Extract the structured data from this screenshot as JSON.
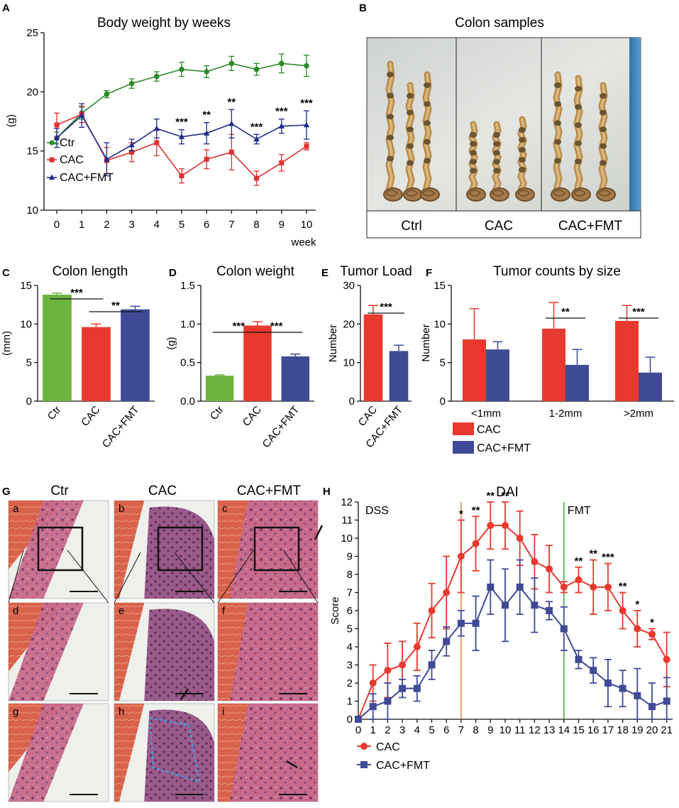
{
  "panels": {
    "A": "A",
    "B": "B",
    "C": "C",
    "D": "D",
    "E": "E",
    "F": "F",
    "G": "G",
    "H": "H"
  },
  "chart_data": [
    {
      "id": "A",
      "type": "line",
      "title": "Body weight by weeks",
      "xlabel": "week",
      "ylabel": "(g)",
      "ylim": [
        10,
        25
      ],
      "yticks": [
        10,
        15,
        20,
        25
      ],
      "x": [
        0,
        1,
        2,
        3,
        4,
        5,
        6,
        7,
        8,
        9,
        10
      ],
      "series": [
        {
          "name": "Ctr",
          "color": "#2a8a2a",
          "marker": "circle",
          "values": [
            16.1,
            18.2,
            19.8,
            20.7,
            21.3,
            21.9,
            21.7,
            22.4,
            21.9,
            22.4,
            22.2
          ],
          "err": [
            0.5,
            0.5,
            0.3,
            0.4,
            0.4,
            0.6,
            0.5,
            0.6,
            0.5,
            0.8,
            0.9
          ]
        },
        {
          "name": "CAC",
          "color": "#e03030",
          "marker": "square",
          "values": [
            17.2,
            18.1,
            14.2,
            14.9,
            15.7,
            12.9,
            14.3,
            14.9,
            12.7,
            14.0,
            15.4
          ],
          "err": [
            1.0,
            0.7,
            1.1,
            0.8,
            1.1,
            0.6,
            0.8,
            1.5,
            0.6,
            0.7,
            0.3
          ]
        },
        {
          "name": "CAC+FMT",
          "color": "#1f2a8a",
          "marker": "triangle",
          "values": [
            16.1,
            18.0,
            14.3,
            15.5,
            16.9,
            16.2,
            16.5,
            17.3,
            16.0,
            17.1,
            17.2
          ],
          "err": [
            0.8,
            1.0,
            1.4,
            0.5,
            0.8,
            0.6,
            0.9,
            1.2,
            0.4,
            0.6,
            1.2
          ]
        }
      ],
      "annotations": [
        {
          "x": 5,
          "text": "***"
        },
        {
          "x": 6,
          "text": "**"
        },
        {
          "x": 7,
          "text": "**"
        },
        {
          "x": 8,
          "text": "***"
        },
        {
          "x": 9,
          "text": "***"
        },
        {
          "x": 10,
          "text": "***"
        }
      ]
    },
    {
      "id": "C",
      "type": "bar",
      "title": "Colon length",
      "ylabel": "(mm)",
      "ylim": [
        0,
        15
      ],
      "yticks": [
        0,
        5,
        10,
        15
      ],
      "categories": [
        "Ctr",
        "CAC",
        "CAC+FMT"
      ],
      "values": [
        13.8,
        9.6,
        11.9
      ],
      "err": [
        0.2,
        0.4,
        0.4
      ],
      "colors": [
        "#6cb43f",
        "#e8392e",
        "#3f4a96"
      ],
      "annotations": [
        {
          "from": 0,
          "to": 1,
          "text": "***"
        },
        {
          "from": 1,
          "to": 2,
          "text": "**"
        }
      ]
    },
    {
      "id": "D",
      "type": "bar",
      "title": "Colon weight",
      "ylabel": "(g)",
      "ylim": [
        0,
        1.5
      ],
      "yticks": [
        "0.0",
        "0.5",
        "1.0",
        "1.5"
      ],
      "categories": [
        "Ctr",
        "CAC",
        "CAC+FMT"
      ],
      "values": [
        0.33,
        0.98,
        0.58
      ],
      "err": [
        0.01,
        0.05,
        0.03
      ],
      "colors": [
        "#6cb43f",
        "#e8392e",
        "#3f4a96"
      ],
      "annotations": [
        {
          "from": 0,
          "to": 1,
          "text": "***"
        },
        {
          "from": 1,
          "to": 2,
          "text": "***"
        }
      ]
    },
    {
      "id": "E",
      "type": "bar",
      "title": "Tumor Load",
      "ylabel": "Number",
      "ylim": [
        0,
        30
      ],
      "yticks": [
        0,
        10,
        20,
        30
      ],
      "categories": [
        "CAC",
        "CAC+FMT"
      ],
      "values": [
        22.5,
        13.0
      ],
      "err": [
        2.3,
        1.5
      ],
      "colors": [
        "#e8392e",
        "#3f4a96"
      ],
      "annotations": [
        {
          "from": 0,
          "to": 1,
          "text": "***"
        }
      ]
    },
    {
      "id": "F",
      "type": "bar",
      "title": "Tumor counts by size",
      "ylabel": "Number",
      "ylim": [
        0,
        15
      ],
      "yticks": [
        0,
        5,
        10,
        15
      ],
      "categories": [
        "<1mm",
        "1-2mm",
        ">2mm"
      ],
      "series": [
        {
          "name": "CAC",
          "color": "#e8392e",
          "values": [
            8.0,
            9.4,
            10.4
          ],
          "err": [
            4.0,
            3.4,
            2.0
          ]
        },
        {
          "name": "CAC+FMT",
          "color": "#3f4a96",
          "values": [
            6.7,
            4.7,
            3.7
          ],
          "err": [
            1.0,
            2.0,
            2.0
          ]
        }
      ],
      "annotations": [
        {
          "cat": 1,
          "text": "**"
        },
        {
          "cat": 2,
          "text": "***"
        }
      ]
    },
    {
      "id": "H",
      "type": "line",
      "title": "DAI",
      "ylabel": "Score",
      "ylim": [
        0,
        12
      ],
      "yticks": [
        0,
        1,
        2,
        3,
        4,
        5,
        6,
        7,
        8,
        9,
        10,
        11,
        12
      ],
      "x": [
        0,
        1,
        2,
        3,
        4,
        5,
        6,
        7,
        8,
        9,
        10,
        11,
        12,
        13,
        14,
        15,
        16,
        17,
        18,
        19,
        20,
        21
      ],
      "series": [
        {
          "name": "CAC",
          "color": "#e8392e",
          "marker": "circle",
          "values": [
            0,
            2.0,
            2.7,
            3.0,
            4.0,
            6.0,
            7.0,
            9.0,
            9.7,
            10.7,
            10.7,
            10.0,
            8.7,
            8.3,
            7.3,
            7.7,
            7.3,
            7.3,
            6.0,
            5.0,
            4.7,
            3.3
          ],
          "err": [
            0,
            1.0,
            1.5,
            1.3,
            1.3,
            1.5,
            2.0,
            2.0,
            1.5,
            1.3,
            1.3,
            1.5,
            1.5,
            1.3,
            0.3,
            0.7,
            1.5,
            1.3,
            1.0,
            1.0,
            0.3,
            1.5
          ]
        },
        {
          "name": "CAC+FMT",
          "color": "#3f4a96",
          "marker": "square",
          "values": [
            0,
            0.7,
            1.0,
            1.7,
            1.7,
            3.0,
            4.3,
            5.3,
            5.3,
            7.3,
            6.3,
            7.3,
            6.3,
            6.0,
            5.0,
            3.3,
            2.7,
            2.0,
            1.7,
            1.3,
            0.7,
            1.0
          ],
          "err": [
            0,
            0.7,
            1.0,
            0.5,
            0.7,
            0.8,
            0.8,
            0.7,
            1.5,
            1.5,
            2.0,
            1.5,
            1.5,
            0.5,
            1.2,
            0.5,
            0.7,
            1.3,
            1.0,
            1.5,
            1.3,
            1.3
          ]
        }
      ],
      "annotations": [
        {
          "x": 7,
          "text": "*"
        },
        {
          "x": 8,
          "text": "**"
        },
        {
          "x": 9,
          "text": "**"
        },
        {
          "x": 10,
          "text": "**"
        },
        {
          "x": 15,
          "text": "**"
        },
        {
          "x": 16,
          "text": "**"
        },
        {
          "x": 17,
          "text": "***"
        },
        {
          "x": 18,
          "text": "**"
        },
        {
          "x": 19,
          "text": "*"
        },
        {
          "x": 20,
          "text": "*"
        }
      ],
      "vlines": [
        {
          "x": 7,
          "color": "#e07020",
          "label": ""
        },
        {
          "x": 14,
          "color": "#1a9a1a",
          "label": "FMT"
        }
      ],
      "dss_label": "DSS"
    }
  ],
  "colon_photo": {
    "title": "Colon samples",
    "groups": [
      "Ctrl",
      "CAC",
      "CAC+FMT"
    ]
  },
  "histology": {
    "columns": [
      "Ctr",
      "CAC",
      "CAC+FMT"
    ],
    "tiles": [
      "a",
      "b",
      "c",
      "d",
      "e",
      "f",
      "g",
      "h",
      "i"
    ]
  }
}
